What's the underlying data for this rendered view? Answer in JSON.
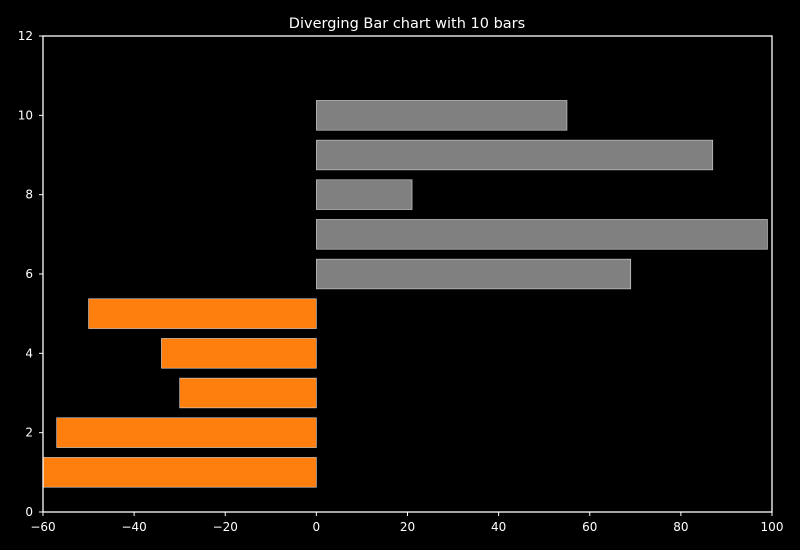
{
  "chart_data": {
    "type": "bar",
    "orientation": "horizontal",
    "title": "Diverging Bar chart with 10 bars",
    "xlabel": "",
    "ylabel": "",
    "xlim": [
      -60,
      100
    ],
    "ylim": [
      0,
      12
    ],
    "x_ticks": [
      -60,
      -40,
      -20,
      0,
      20,
      40,
      60,
      80,
      100
    ],
    "x_tick_labels": [
      "−60",
      "−40",
      "−20",
      "0",
      "20",
      "40",
      "60",
      "80",
      "100"
    ],
    "y_ticks": [
      0,
      2,
      4,
      6,
      8,
      10,
      12
    ],
    "y_tick_labels": [
      "0",
      "2",
      "4",
      "6",
      "8",
      "10",
      "12"
    ],
    "grid": false,
    "bar_height": 0.75,
    "colors": {
      "background": "#000000",
      "axes_edge": "#ffffff",
      "text": "#ffffff",
      "negative": "#ff7f0e",
      "positive": "#808080",
      "bar_edge": "#d9d9d9"
    },
    "categories": [
      1,
      2,
      3,
      4,
      5,
      6,
      7,
      8,
      9,
      10
    ],
    "values": [
      -60,
      -57,
      -30,
      -34,
      -50,
      69,
      99,
      21,
      87,
      55
    ]
  }
}
